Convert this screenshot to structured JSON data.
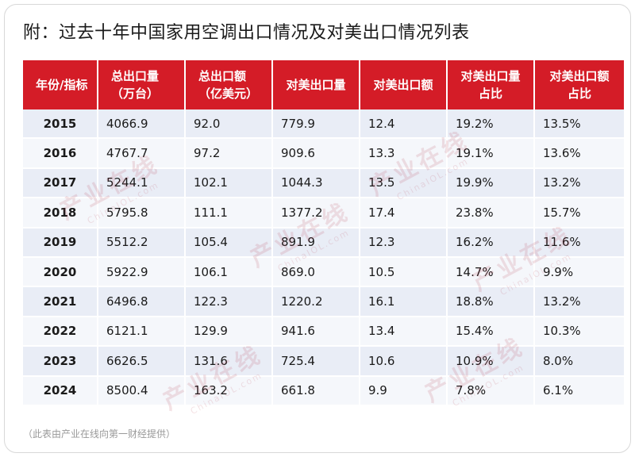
{
  "title": "附：过去十年中国家用空调出口情况及对美出口情况列表",
  "watermark": {
    "cn": "产业在线",
    "en": "ChinaIOL.com"
  },
  "table": {
    "headers": [
      {
        "line1": "年份/指标",
        "line2": ""
      },
      {
        "line1": "总出口量",
        "line2": "（万台）"
      },
      {
        "line1": "总出口额",
        "line2": "（亿美元）"
      },
      {
        "line1": "对美出口量",
        "line2": ""
      },
      {
        "line1": "对美出口额",
        "line2": ""
      },
      {
        "line1": "对美出口量",
        "line2": "占比"
      },
      {
        "line1": "对美出口额",
        "line2": "占比"
      }
    ],
    "rows": [
      {
        "year": "2015",
        "total_volume": "4066.9",
        "total_value": "92.0",
        "us_volume": "779.9",
        "us_value": "12.4",
        "us_volume_share": "19.2%",
        "us_value_share": "13.5%"
      },
      {
        "year": "2016",
        "total_volume": "4767.7",
        "total_value": "97.2",
        "us_volume": "909.6",
        "us_value": "13.3",
        "us_volume_share": "19.1%",
        "us_value_share": "13.6%"
      },
      {
        "year": "2017",
        "total_volume": "5244.1",
        "total_value": "102.1",
        "us_volume": "1044.3",
        "us_value": "13.5",
        "us_volume_share": "19.9%",
        "us_value_share": "13.2%"
      },
      {
        "year": "2018",
        "total_volume": "5795.8",
        "total_value": "111.1",
        "us_volume": "1377.2",
        "us_value": "17.4",
        "us_volume_share": "23.8%",
        "us_value_share": "15.7%"
      },
      {
        "year": "2019",
        "total_volume": "5512.2",
        "total_value": "105.4",
        "us_volume": "891.9",
        "us_value": "12.3",
        "us_volume_share": "16.2%",
        "us_value_share": "11.6%"
      },
      {
        "year": "2020",
        "total_volume": "5922.9",
        "total_value": "106.1",
        "us_volume": "869.0",
        "us_value": "10.5",
        "us_volume_share": "14.7%",
        "us_value_share": "9.9%"
      },
      {
        "year": "2021",
        "total_volume": "6496.8",
        "total_value": "122.3",
        "us_volume": "1220.2",
        "us_value": "16.1",
        "us_volume_share": "18.8%",
        "us_value_share": "13.2%"
      },
      {
        "year": "2022",
        "total_volume": "6121.1",
        "total_value": "129.9",
        "us_volume": "941.6",
        "us_value": "13.4",
        "us_volume_share": "15.4%",
        "us_value_share": "10.3%"
      },
      {
        "year": "2023",
        "total_volume": "6626.5",
        "total_value": "131.6",
        "us_volume": "725.4",
        "us_value": "10.6",
        "us_volume_share": "10.9%",
        "us_value_share": "8.0%"
      },
      {
        "year": "2024",
        "total_volume": "8500.4",
        "total_value": "163.2",
        "us_volume": "661.8",
        "us_value": "9.9",
        "us_volume_share": "7.8%",
        "us_value_share": "6.1%"
      }
    ]
  },
  "footer": "（此表由产业在线向第一财经提供）",
  "colors": {
    "header_bg": "#d41c27",
    "row_odd": "#e9edf6",
    "row_even": "#f5f7fb",
    "watermark": "#b0253a"
  }
}
